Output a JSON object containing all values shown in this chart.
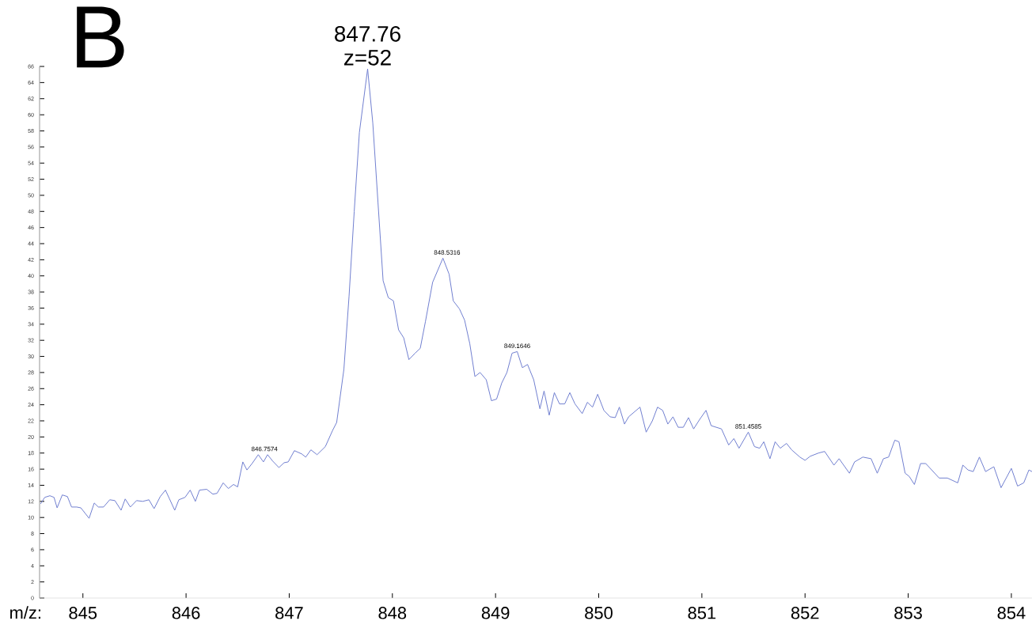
{
  "chart_data": {
    "type": "line",
    "xlabel": "m/z:",
    "color": "#7080d0",
    "marker": "none",
    "line_style": "solid",
    "xlim": [
      844.58,
      854.2
    ],
    "ylim": [
      0,
      66
    ],
    "xticks": [
      845,
      846,
      847,
      848,
      849,
      850,
      851,
      852,
      853,
      854
    ],
    "yticks": [
      0,
      2,
      4,
      6,
      8,
      10,
      12,
      14,
      16,
      18,
      20,
      22,
      24,
      26,
      28,
      30,
      32,
      34,
      36,
      38,
      40,
      42,
      44,
      46,
      48,
      50,
      52,
      54,
      56,
      58,
      60,
      62,
      64,
      66
    ],
    "x": [
      844.59,
      844.63,
      844.68,
      844.72,
      844.75,
      844.8,
      844.85,
      844.89,
      844.94,
      844.98,
      845.06,
      845.11,
      845.15,
      845.2,
      845.26,
      845.31,
      845.37,
      845.41,
      845.46,
      845.52,
      845.58,
      845.64,
      845.69,
      845.75,
      845.8,
      845.84,
      845.89,
      845.93,
      845.99,
      846.04,
      846.09,
      846.13,
      846.2,
      846.26,
      846.3,
      846.36,
      846.41,
      846.46,
      846.5,
      846.55,
      846.59,
      846.64,
      846.7,
      846.75,
      846.79,
      846.84,
      846.9,
      846.95,
      846.99,
      847.05,
      847.12,
      847.16,
      847.21,
      847.27,
      847.35,
      847.42,
      847.46,
      847.53,
      847.58,
      847.63,
      847.68,
      847.76,
      847.81,
      847.86,
      847.91,
      847.96,
      848.01,
      848.06,
      848.11,
      848.16,
      848.22,
      848.27,
      848.32,
      848.39,
      848.49,
      848.55,
      848.59,
      848.65,
      848.7,
      848.75,
      848.8,
      848.85,
      848.91,
      848.96,
      849.01,
      849.06,
      849.11,
      849.16,
      849.21,
      849.26,
      849.31,
      849.37,
      849.43,
      849.47,
      849.52,
      849.57,
      849.62,
      849.67,
      849.72,
      849.77,
      849.84,
      849.89,
      849.94,
      849.99,
      850.05,
      850.11,
      850.16,
      850.2,
      850.25,
      850.29,
      850.4,
      850.46,
      850.52,
      850.57,
      850.62,
      850.67,
      850.72,
      850.77,
      850.82,
      850.87,
      850.92,
      850.98,
      851.04,
      851.09,
      851.19,
      851.26,
      851.31,
      851.36,
      851.45,
      851.51,
      851.56,
      851.6,
      851.66,
      851.71,
      851.76,
      851.82,
      851.87,
      851.95,
      852.0,
      852.05,
      852.13,
      852.19,
      852.28,
      852.33,
      852.43,
      852.48,
      852.56,
      852.64,
      852.7,
      852.76,
      852.81,
      852.87,
      852.91,
      852.97,
      853.01,
      853.06,
      853.12,
      853.17,
      853.3,
      853.38,
      853.48,
      853.53,
      853.58,
      853.63,
      853.69,
      853.75,
      853.83,
      853.9,
      854.0,
      854.06,
      854.12,
      854.17,
      854.2
    ],
    "values": [
      11.7,
      12.5,
      12.7,
      12.5,
      11.2,
      12.8,
      12.6,
      11.3,
      11.3,
      11.2,
      9.9,
      11.8,
      11.3,
      11.3,
      12.2,
      12.1,
      10.9,
      12.3,
      11.3,
      12.1,
      12.0,
      12.2,
      11.1,
      12.6,
      13.4,
      12.3,
      10.9,
      12.2,
      12.5,
      13.4,
      12.0,
      13.4,
      13.5,
      12.9,
      13.0,
      14.3,
      13.6,
      14.1,
      13.8,
      16.9,
      15.9,
      16.7,
      17.8,
      16.9,
      17.8,
      17.0,
      16.2,
      16.8,
      16.9,
      18.3,
      17.9,
      17.5,
      18.4,
      17.8,
      18.8,
      20.8,
      21.8,
      28.4,
      37.5,
      48.0,
      57.8,
      65.7,
      59.0,
      49.2,
      39.4,
      37.3,
      36.9,
      33.3,
      32.3,
      29.6,
      30.4,
      31.0,
      34.3,
      39.2,
      42.2,
      40.2,
      36.9,
      35.9,
      34.5,
      31.6,
      27.5,
      28.0,
      27.1,
      24.5,
      24.7,
      26.7,
      28.0,
      30.4,
      30.6,
      28.6,
      29.0,
      27.1,
      23.5,
      25.7,
      22.7,
      25.5,
      24.1,
      24.1,
      25.5,
      24.1,
      22.9,
      24.3,
      23.7,
      25.3,
      23.3,
      22.5,
      22.4,
      23.7,
      21.6,
      22.5,
      23.7,
      20.6,
      22.0,
      23.7,
      23.3,
      21.6,
      22.5,
      21.2,
      21.2,
      22.4,
      21.0,
      22.2,
      23.3,
      21.4,
      21.0,
      19.0,
      19.8,
      18.6,
      20.6,
      18.8,
      18.6,
      19.4,
      17.3,
      19.4,
      18.6,
      19.2,
      18.4,
      17.5,
      17.1,
      17.6,
      18.0,
      18.2,
      16.5,
      17.3,
      15.5,
      16.9,
      17.5,
      17.3,
      15.5,
      17.3,
      17.5,
      19.6,
      19.4,
      15.5,
      15.1,
      14.1,
      16.7,
      16.7,
      14.9,
      14.9,
      14.3,
      16.5,
      15.9,
      15.7,
      17.5,
      15.7,
      16.3,
      13.7,
      16.1,
      13.9,
      14.3,
      15.9,
      15.7
    ],
    "annotations": [
      "B",
      {
        "text": "847.76",
        "x": 847.76,
        "y": 65.7
      },
      {
        "text": "z=52",
        "x": 847.76,
        "y": 65.7
      },
      {
        "text": "846.7574",
        "x": 846.76,
        "y": 17.8
      },
      {
        "text": "848.5316",
        "x": 848.53,
        "y": 42.2
      },
      {
        "text": "849.1646",
        "x": 849.21,
        "y": 30.6
      },
      {
        "text": "851.4585",
        "x": 851.45,
        "y": 20.6
      }
    ]
  }
}
